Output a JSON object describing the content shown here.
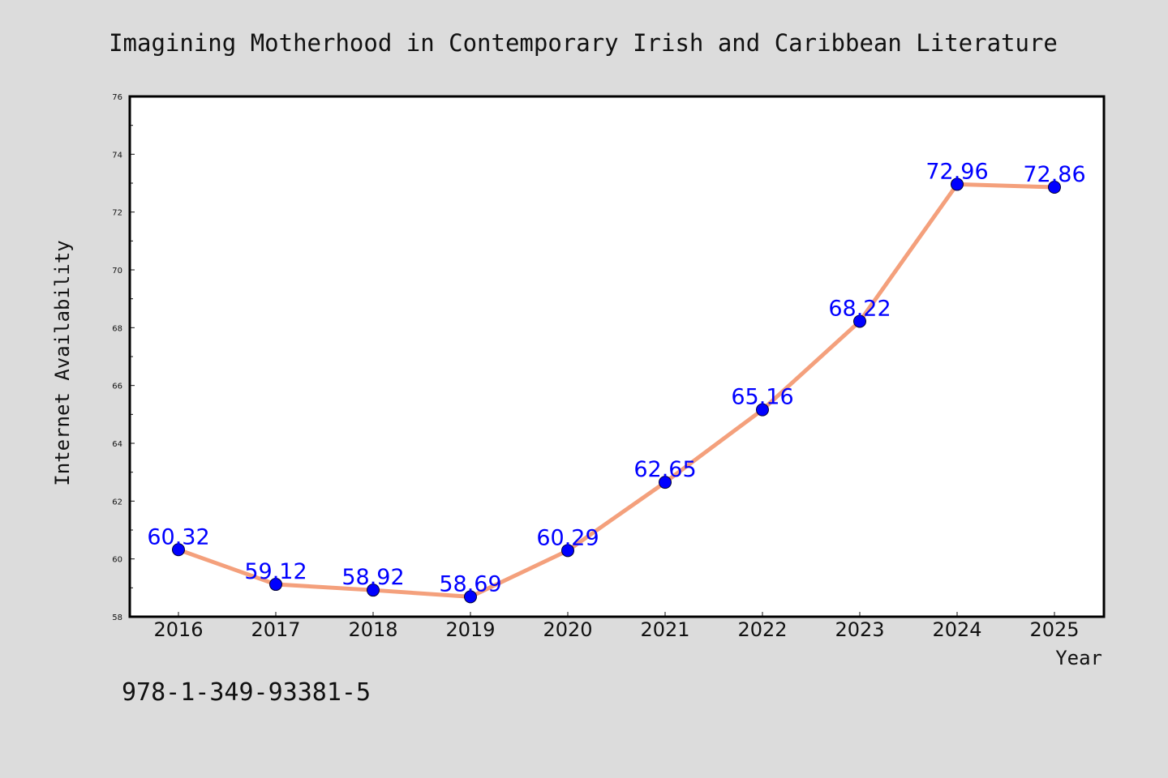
{
  "chart_data": {
    "type": "line",
    "title": "Imagining Motherhood in Contemporary Irish and Caribbean Literature",
    "xlabel": "Year",
    "ylabel": "Internet Availability",
    "categories": [
      "2016",
      "2017",
      "2018",
      "2019",
      "2020",
      "2021",
      "2022",
      "2023",
      "2024",
      "2025"
    ],
    "series": [
      {
        "values": [
          60.32,
          59.12,
          58.92,
          58.69,
          60.29,
          62.65,
          65.16,
          68.22,
          72.96,
          72.86
        ],
        "labels": [
          "60.32",
          "59.12",
          "58.92",
          "58.69",
          "60.29",
          "62.65",
          "65.16",
          "68.22",
          "72.96",
          "72.86"
        ],
        "line_color": "#f4a07c",
        "marker_color": "#0000ff"
      }
    ],
    "ylim": [
      58,
      76
    ],
    "yticks": [
      "58",
      "60",
      "62",
      "64",
      "66",
      "68",
      "70",
      "72",
      "74",
      "76"
    ],
    "grid": false,
    "legend": "none"
  },
  "footer": {
    "isbn": "978-1-349-93381-5"
  }
}
